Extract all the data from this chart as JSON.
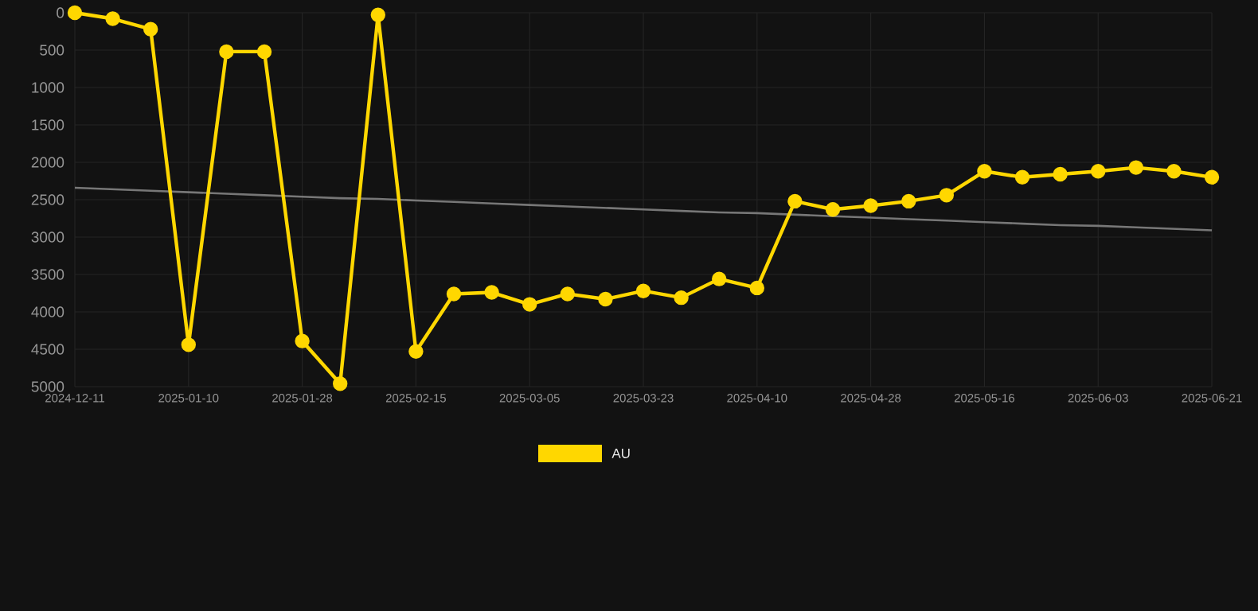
{
  "chart_data": {
    "type": "line",
    "categories": [
      "2024-12-11",
      null,
      null,
      "2025-01-10",
      null,
      null,
      "2025-01-28",
      null,
      null,
      "2025-02-15",
      null,
      null,
      "2025-03-05",
      null,
      null,
      "2025-03-23",
      null,
      null,
      "2025-04-10",
      null,
      null,
      "2025-04-28",
      null,
      null,
      "2025-05-16",
      null,
      null,
      "2025-06-03",
      null,
      null,
      "2025-06-21"
    ],
    "series": [
      {
        "name": "AU",
        "color": "#ffd700",
        "values": [
          0,
          80,
          220,
          4440,
          520,
          520,
          4390,
          4960,
          30,
          4530,
          3760,
          3740,
          3900,
          3760,
          3830,
          3720,
          3810,
          3560,
          3680,
          2520,
          2630,
          2580,
          2520,
          2440,
          2120,
          2200,
          2160,
          2120,
          2070,
          2120,
          2200
        ]
      },
      {
        "type": "line",
        "color": "#777777",
        "marker": "none",
        "values": [
          2340,
          2360,
          2380,
          2400,
          2420,
          2440,
          2460,
          2480,
          2490,
          2510,
          2530,
          2550,
          2570,
          2590,
          2610,
          2630,
          2650,
          2670,
          2680,
          2700,
          2720,
          2740,
          2760,
          2780,
          2800,
          2820,
          2840,
          2850,
          2870,
          2890,
          2910
        ]
      }
    ],
    "ylim": [
      5000,
      0
    ],
    "yticks": [
      0,
      500,
      1000,
      1500,
      2000,
      2500,
      3000,
      3500,
      4000,
      4500,
      5000
    ],
    "grid": true,
    "legend": "bottom",
    "marker": "circle",
    "line_style": "solid"
  }
}
